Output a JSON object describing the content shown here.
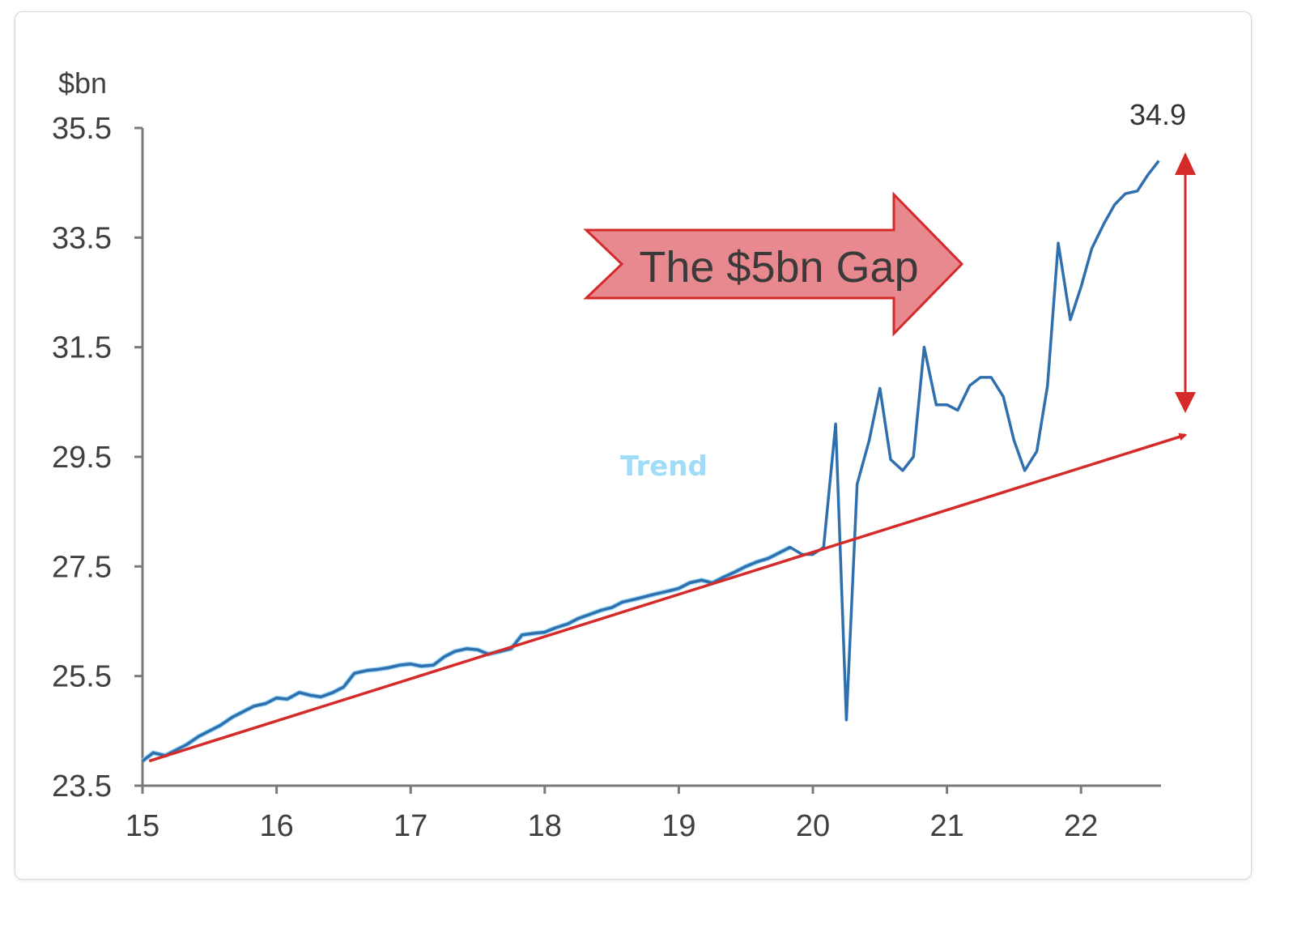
{
  "chart_data": {
    "type": "line",
    "ylabel": "$bn",
    "ylim": [
      23.5,
      35.5
    ],
    "xlim": [
      15,
      22.6
    ],
    "yticks": [
      "35.5",
      "33.5",
      "31.5",
      "29.5",
      "27.5",
      "25.5",
      "23.5"
    ],
    "xticks": [
      "15",
      "16",
      "17",
      "18",
      "19",
      "20",
      "21",
      "22"
    ],
    "annotation": "The $5bn Gap",
    "trend_label": "Trend",
    "end_value_label": "34.9",
    "colors": {
      "actual": "#2f6fad",
      "trend_fit": "#8fd3f4",
      "trend_line": "#d42a2a",
      "gap_arrow_fill": "#e8898f"
    },
    "series": [
      {
        "x": [
          15.0,
          15.08,
          15.17,
          15.25,
          15.33,
          15.42,
          15.5,
          15.58,
          15.67,
          15.75,
          15.83,
          15.92,
          16.0,
          16.08,
          16.17,
          16.25,
          16.33,
          16.42,
          16.5,
          16.58,
          16.67,
          16.75,
          16.83,
          16.92,
          17.0,
          17.08,
          17.17,
          17.25,
          17.33,
          17.42,
          17.5,
          17.58,
          17.67,
          17.75,
          17.83,
          17.92,
          18.0,
          18.08,
          18.17,
          18.25,
          18.33,
          18.42,
          18.5,
          18.58,
          18.67,
          18.75,
          18.83,
          18.92,
          19.0,
          19.08,
          19.17,
          19.25,
          19.33,
          19.42,
          19.5,
          19.58,
          19.67,
          19.75,
          19.83,
          19.92,
          20.0,
          20.08,
          20.17,
          20.25,
          20.33,
          20.42,
          20.5,
          20.58,
          20.67,
          20.75,
          20.83,
          20.92,
          21.0,
          21.08,
          21.17,
          21.25,
          21.33,
          21.42,
          21.5,
          21.58,
          21.67,
          21.75,
          21.83,
          21.92,
          22.0,
          22.08,
          22.17,
          22.25,
          22.33,
          22.42,
          22.5,
          22.58
        ],
        "values": [
          23.95,
          24.1,
          24.05,
          24.15,
          24.25,
          24.4,
          24.5,
          24.6,
          24.75,
          24.85,
          24.95,
          25.0,
          25.1,
          25.08,
          25.2,
          25.15,
          25.12,
          25.2,
          25.3,
          25.55,
          25.6,
          25.62,
          25.65,
          25.7,
          25.72,
          25.68,
          25.7,
          25.85,
          25.95,
          26.0,
          25.98,
          25.9,
          25.95,
          26.0,
          26.25,
          26.28,
          26.3,
          26.38,
          26.45,
          26.55,
          26.62,
          26.7,
          26.75,
          26.85,
          26.9,
          26.95,
          27.0,
          27.05,
          27.1,
          27.2,
          27.25,
          27.2,
          27.3,
          27.4,
          27.5,
          27.58,
          27.65,
          27.75,
          27.85,
          27.72,
          27.72,
          27.85,
          30.1,
          24.7,
          29.0,
          29.8,
          30.75,
          29.45,
          29.25,
          29.5,
          31.5,
          30.45,
          30.45,
          30.35,
          30.8,
          30.95,
          30.95,
          30.6,
          29.8,
          29.25,
          29.6,
          30.8,
          33.4,
          32.0,
          32.6,
          33.3,
          33.75,
          34.1,
          34.3,
          34.35,
          34.65,
          34.9
        ]
      }
    ],
    "trend_line": {
      "x": [
        15.05,
        22.78
      ],
      "y": [
        23.95,
        29.9
      ]
    }
  }
}
